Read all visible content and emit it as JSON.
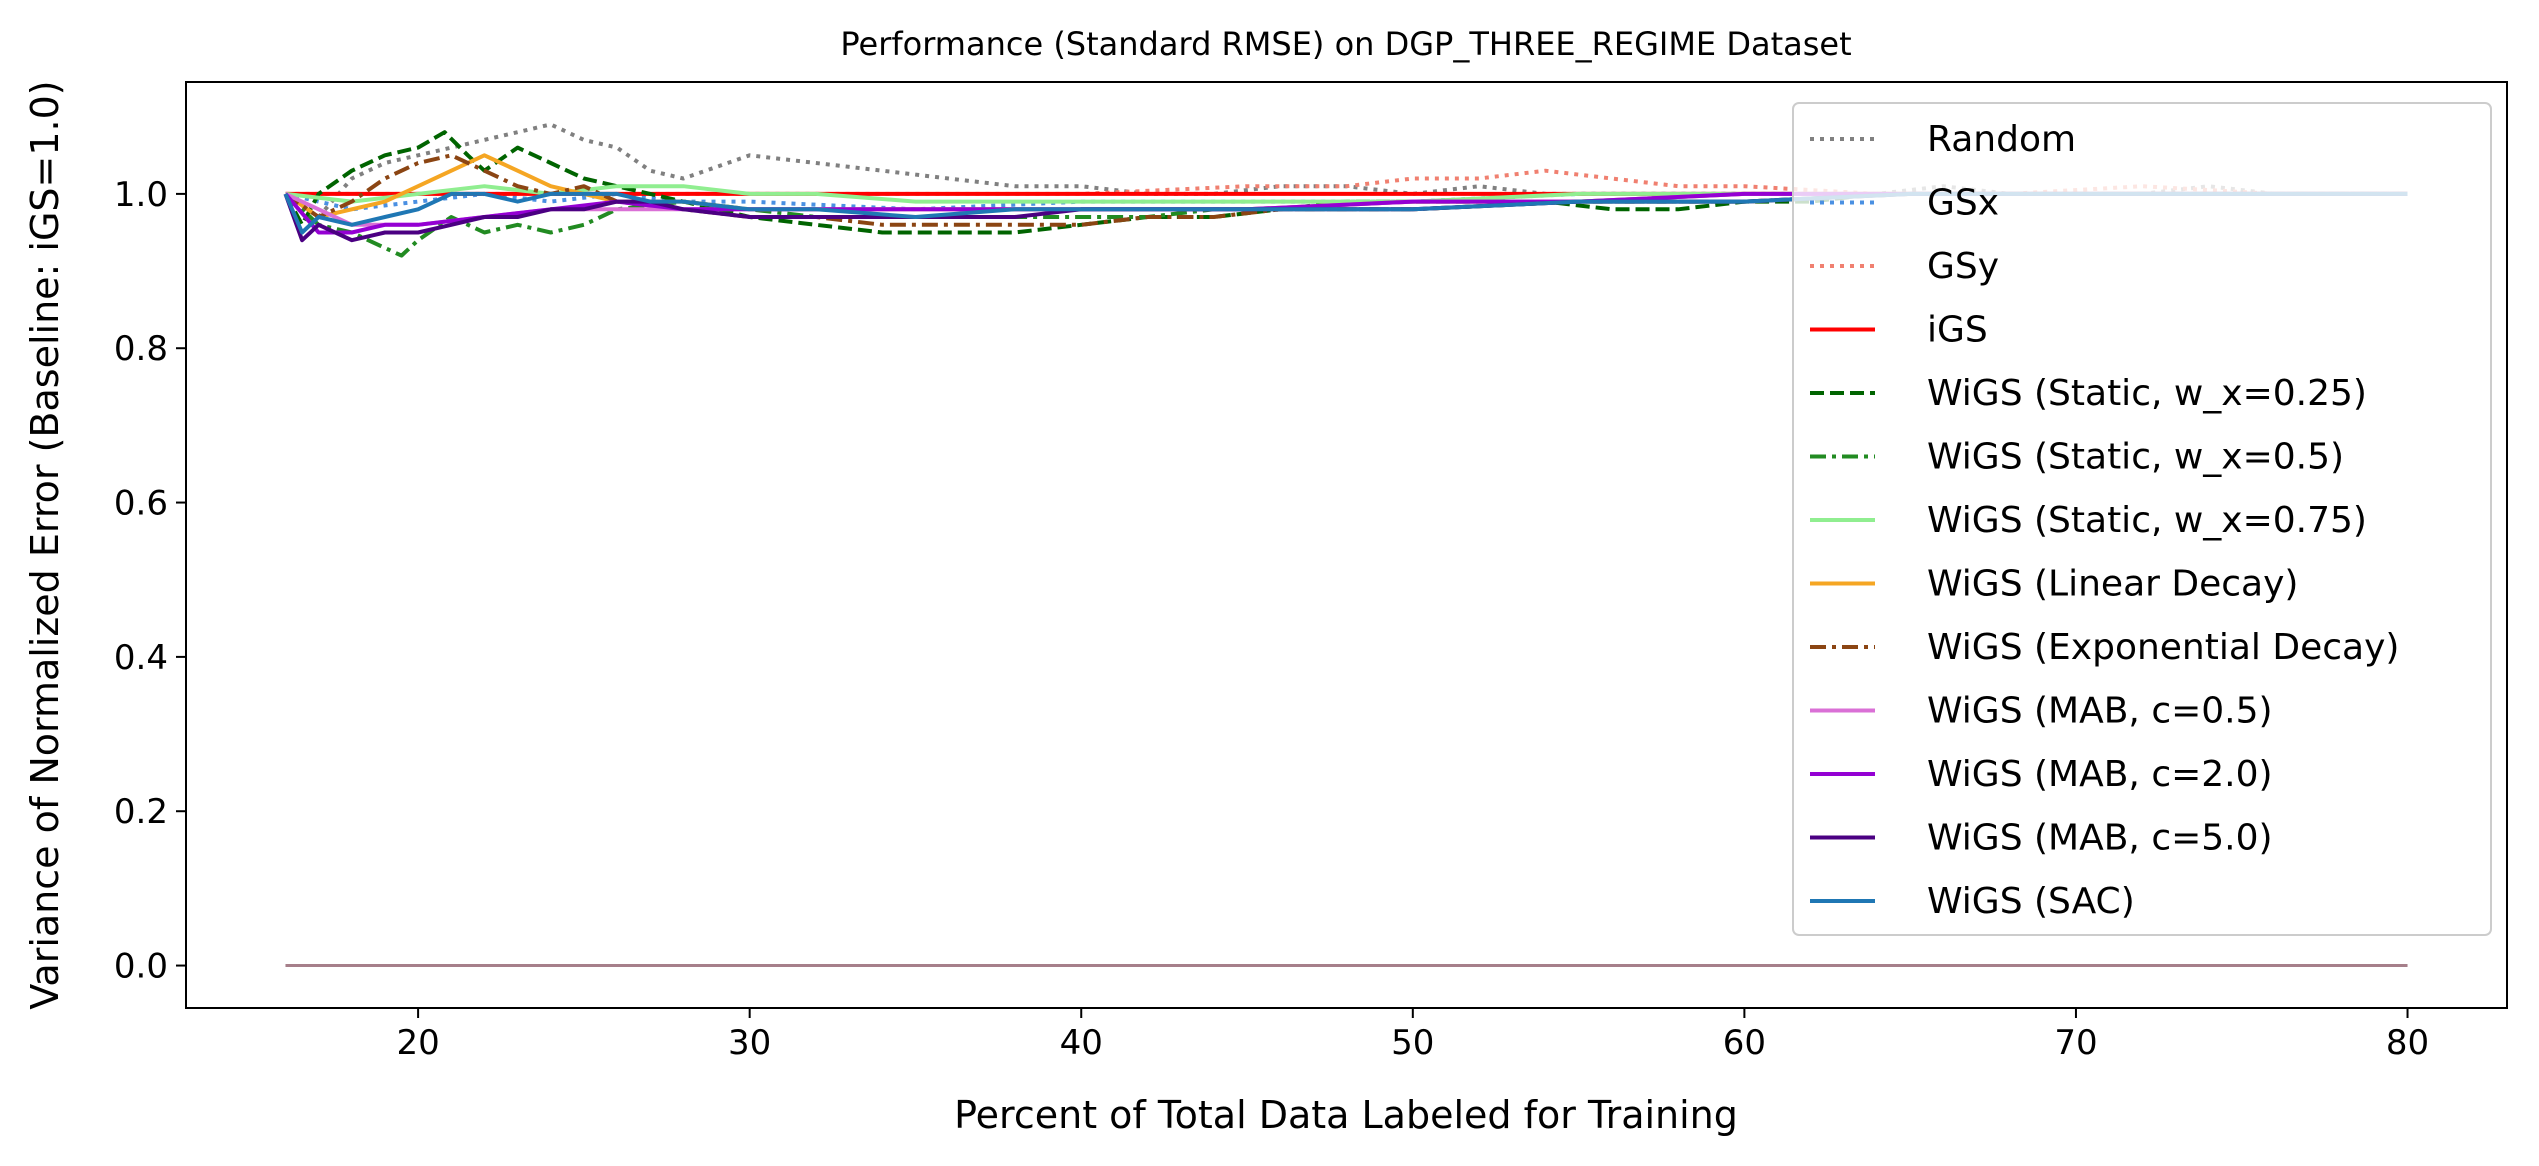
{
  "chart_data": {
    "type": "line",
    "title": "Performance (Standard RMSE) on DGP_THREE_REGIME Dataset",
    "xlabel": "Percent of Total Data Labeled for Training",
    "ylabel": "Variance of Normalized Error (Baseline: iGS=1.0)",
    "xlim": [
      13,
      83
    ],
    "ylim": [
      -0.055,
      1.145
    ],
    "xticks": [
      20,
      30,
      40,
      50,
      60,
      70,
      80
    ],
    "yticks": [
      0.0,
      0.2,
      0.4,
      0.6,
      0.8,
      1.0
    ],
    "xtick_labels": [
      "20",
      "30",
      "40",
      "50",
      "60",
      "70",
      "80"
    ],
    "ytick_labels": [
      "0.0",
      "0.2",
      "0.4",
      "0.6",
      "0.8",
      "1.0"
    ],
    "grid": false,
    "legend_position": "upper-right",
    "baseline_line": {
      "x": [
        16,
        80
      ],
      "y": [
        0.0,
        0.0
      ],
      "color": "#a67f8a"
    },
    "series": [
      {
        "name": "Random",
        "color": "#808080",
        "dash": "dotted",
        "x": [
          16,
          17,
          18,
          19,
          20,
          21,
          22,
          23,
          24,
          25,
          26,
          27,
          28,
          30,
          32,
          34,
          36,
          38,
          40,
          42,
          44,
          46,
          48,
          50,
          52,
          54,
          56,
          58,
          60,
          62,
          64,
          66,
          68,
          70,
          72,
          74,
          76,
          78,
          80
        ],
        "y": [
          1.0,
          0.97,
          1.02,
          1.04,
          1.05,
          1.06,
          1.07,
          1.08,
          1.09,
          1.07,
          1.06,
          1.03,
          1.02,
          1.05,
          1.04,
          1.03,
          1.02,
          1.01,
          1.01,
          1.0,
          1.0,
          1.01,
          1.01,
          1.0,
          1.01,
          1.0,
          1.0,
          1.0,
          1.0,
          1.0,
          1.0,
          1.01,
          1.0,
          1.0,
          1.0,
          1.01,
          1.0,
          1.0,
          1.0
        ]
      },
      {
        "name": "GSx",
        "color": "#4a90e2",
        "dash": "dotted",
        "x": [
          16,
          18,
          20,
          22,
          24,
          26,
          28,
          30,
          35,
          40,
          45,
          50,
          55,
          60,
          65,
          70,
          75,
          80
        ],
        "y": [
          1.0,
          0.98,
          0.99,
          1.0,
          0.99,
          1.0,
          0.99,
          0.99,
          0.98,
          0.99,
          0.99,
          0.99,
          1.0,
          1.0,
          1.0,
          1.0,
          1.0,
          1.0
        ]
      },
      {
        "name": "GSy",
        "color": "#f08070",
        "dash": "dotted",
        "x": [
          16,
          20,
          25,
          30,
          35,
          40,
          45,
          48,
          50,
          52,
          54,
          56,
          58,
          60,
          64,
          68,
          72,
          76,
          80
        ],
        "y": [
          1.0,
          1.0,
          1.0,
          1.0,
          1.0,
          1.0,
          1.01,
          1.01,
          1.02,
          1.02,
          1.03,
          1.02,
          1.01,
          1.01,
          1.0,
          1.0,
          1.01,
          1.0,
          1.0
        ]
      },
      {
        "name": "iGS",
        "color": "#ff0000",
        "dash": "solid",
        "x": [
          16,
          80
        ],
        "y": [
          1.0,
          1.0
        ]
      },
      {
        "name": "WiGS (Static, w_x=0.25)",
        "color": "#006400",
        "dash": "dashed",
        "x": [
          16,
          16.5,
          17,
          18,
          19,
          20,
          20.8,
          21.5,
          22,
          23,
          24,
          25,
          26,
          28,
          30,
          32,
          34,
          36,
          38,
          40,
          42,
          44,
          46,
          48,
          50,
          52,
          54,
          56,
          58,
          60,
          62,
          64,
          66,
          70,
          75,
          80
        ],
        "y": [
          1.0,
          0.96,
          1.0,
          1.03,
          1.05,
          1.06,
          1.08,
          1.05,
          1.03,
          1.06,
          1.04,
          1.02,
          1.01,
          0.99,
          0.97,
          0.96,
          0.95,
          0.95,
          0.95,
          0.96,
          0.97,
          0.97,
          0.98,
          0.99,
          0.99,
          0.99,
          0.99,
          0.98,
          0.98,
          0.99,
          0.99,
          1.0,
          1.0,
          1.0,
          1.0,
          1.0
        ]
      },
      {
        "name": "WiGS (Static, w_x=0.5)",
        "color": "#228b22",
        "dash": "dashdot",
        "x": [
          16,
          17,
          18,
          19,
          19.5,
          20,
          21,
          22,
          23,
          24,
          25,
          26,
          28,
          30,
          32,
          34,
          36,
          38,
          40,
          42,
          44,
          46,
          48,
          50,
          55,
          60,
          65,
          70,
          75,
          80
        ],
        "y": [
          1.0,
          0.96,
          0.95,
          0.93,
          0.92,
          0.94,
          0.97,
          0.95,
          0.96,
          0.95,
          0.96,
          0.98,
          0.99,
          0.98,
          0.97,
          0.97,
          0.97,
          0.97,
          0.97,
          0.97,
          0.98,
          0.98,
          0.98,
          0.98,
          0.99,
          0.99,
          1.0,
          1.0,
          1.0,
          1.0
        ]
      },
      {
        "name": "WiGS (Static, w_x=0.75)",
        "color": "#90ee90",
        "dash": "solid",
        "x": [
          16,
          18,
          20,
          22,
          24,
          26,
          28,
          30,
          32,
          35,
          40,
          45,
          50,
          55,
          60,
          65,
          70,
          75,
          80
        ],
        "y": [
          1.0,
          0.99,
          1.0,
          1.01,
          1.0,
          1.01,
          1.01,
          1.0,
          1.0,
          0.99,
          0.99,
          0.99,
          0.99,
          1.0,
          1.0,
          1.0,
          1.0,
          1.0,
          1.0
        ]
      },
      {
        "name": "WiGS (Linear Decay)",
        "color": "#f5a623",
        "dash": "solid",
        "x": [
          16,
          17,
          18,
          19,
          20,
          21,
          22,
          22.5,
          23,
          24,
          25,
          26,
          28,
          30,
          32,
          34,
          36,
          38,
          40,
          45,
          50,
          55,
          60,
          65,
          70,
          75,
          80
        ],
        "y": [
          1.0,
          0.97,
          0.98,
          0.99,
          1.01,
          1.03,
          1.05,
          1.04,
          1.03,
          1.01,
          1.0,
          0.99,
          0.99,
          0.98,
          0.98,
          0.98,
          0.98,
          0.98,
          0.98,
          0.98,
          0.99,
          0.99,
          1.0,
          1.0,
          1.0,
          1.0,
          1.0
        ]
      },
      {
        "name": "WiGS (Exponential Decay)",
        "color": "#8b4513",
        "dash": "dashdot",
        "x": [
          16,
          17,
          18,
          19,
          20,
          21,
          22,
          23,
          24,
          25,
          26,
          28,
          30,
          32,
          34,
          36,
          38,
          40,
          42,
          44,
          46,
          48,
          50,
          55,
          60,
          65,
          70,
          75,
          80
        ],
        "y": [
          1.0,
          0.97,
          0.99,
          1.02,
          1.04,
          1.05,
          1.03,
          1.01,
          1.0,
          1.01,
          0.99,
          0.98,
          0.97,
          0.97,
          0.96,
          0.96,
          0.96,
          0.96,
          0.97,
          0.97,
          0.98,
          0.98,
          0.98,
          0.99,
          0.99,
          1.0,
          1.0,
          1.0,
          1.0
        ]
      },
      {
        "name": "WiGS (MAB, c=0.5)",
        "color": "#da70d6",
        "dash": "solid",
        "x": [
          16,
          18,
          20,
          22,
          24,
          26,
          28,
          30,
          35,
          40,
          45,
          50,
          55,
          60,
          65,
          70,
          75,
          80
        ],
        "y": [
          1.0,
          0.96,
          0.96,
          0.97,
          0.98,
          0.98,
          0.98,
          0.98,
          0.98,
          0.98,
          0.98,
          0.99,
          0.99,
          1.0,
          1.0,
          1.0,
          1.0,
          1.0
        ]
      },
      {
        "name": "WiGS (MAB, c=2.0)",
        "color": "#9400d3",
        "dash": "solid",
        "x": [
          16,
          17,
          18,
          19,
          20,
          22,
          24,
          26,
          28,
          30,
          35,
          40,
          45,
          50,
          55,
          60,
          65,
          70,
          75,
          80
        ],
        "y": [
          1.0,
          0.95,
          0.95,
          0.96,
          0.96,
          0.97,
          0.98,
          0.99,
          0.98,
          0.98,
          0.98,
          0.98,
          0.98,
          0.99,
          0.99,
          1.0,
          1.0,
          1.0,
          1.0,
          1.0
        ]
      },
      {
        "name": "WiGS (MAB, c=5.0)",
        "color": "#4b0082",
        "dash": "solid",
        "x": [
          16,
          16.5,
          17,
          18,
          19,
          20,
          21,
          22,
          23,
          24,
          25,
          26,
          27,
          28,
          30,
          32,
          35,
          38,
          40,
          45,
          50,
          55,
          60,
          65,
          70,
          75,
          80
        ],
        "y": [
          1.0,
          0.94,
          0.96,
          0.94,
          0.95,
          0.95,
          0.96,
          0.97,
          0.97,
          0.98,
          0.98,
          0.99,
          0.99,
          0.98,
          0.97,
          0.97,
          0.97,
          0.97,
          0.98,
          0.98,
          0.98,
          0.99,
          0.99,
          1.0,
          1.0,
          1.0,
          1.0
        ]
      },
      {
        "name": "WiGS (SAC)",
        "color": "#1f77b4",
        "dash": "solid",
        "x": [
          16,
          16.5,
          17,
          18,
          19,
          20,
          21,
          22,
          23,
          24,
          25,
          26,
          27,
          28,
          30,
          32,
          35,
          38,
          40,
          45,
          50,
          55,
          60,
          65,
          70,
          75,
          80
        ],
        "y": [
          1.0,
          0.95,
          0.97,
          0.96,
          0.97,
          0.98,
          1.0,
          1.0,
          0.99,
          1.0,
          1.0,
          1.0,
          0.99,
          0.99,
          0.98,
          0.98,
          0.97,
          0.98,
          0.98,
          0.98,
          0.98,
          0.99,
          0.99,
          1.0,
          1.0,
          1.0,
          1.0
        ]
      }
    ]
  }
}
